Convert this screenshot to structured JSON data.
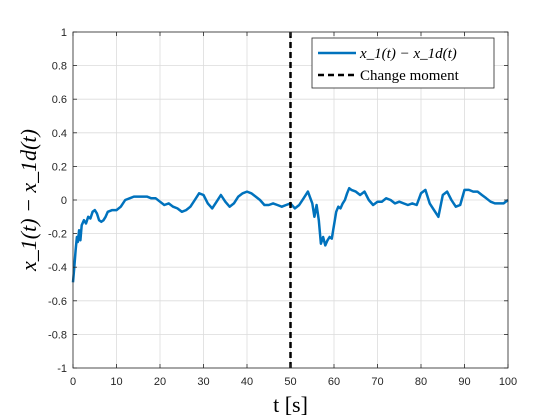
{
  "chart_data": {
    "type": "line",
    "xlabel": "t [s]",
    "ylabel": "x_1(t) − x_1d(t)",
    "xlim": [
      0,
      100
    ],
    "ylim": [
      -1,
      1
    ],
    "xticks": [
      0,
      10,
      20,
      30,
      40,
      50,
      60,
      70,
      80,
      90,
      100
    ],
    "yticks": [
      -1,
      -0.8,
      -0.6,
      -0.4,
      -0.2,
      0,
      0.2,
      0.4,
      0.6,
      0.8,
      1
    ],
    "xtick_labels": [
      "0",
      "10",
      "20",
      "30",
      "40",
      "50",
      "60",
      "70",
      "80",
      "90",
      "100"
    ],
    "ytick_labels": [
      "-1",
      "-0.8",
      "-0.6",
      "-0.4",
      "-0.2",
      "0",
      "0.2",
      "0.4",
      "0.6",
      "0.8",
      "1"
    ],
    "grid": true,
    "legend_position": "top-right",
    "series": [
      {
        "name": "x_1(t) − x_1d(t)",
        "color": "#0072BD",
        "style": "solid",
        "x": [
          0,
          0.3,
          0.6,
          0.9,
          1.1,
          1.4,
          1.7,
          2.0,
          2.5,
          3.0,
          3.5,
          4.0,
          4.5,
          5.0,
          5.5,
          6.0,
          6.5,
          7.0,
          7.5,
          8.0,
          9.0,
          10.0,
          11.0,
          12.0,
          13.0,
          14.0,
          15.0,
          16.0,
          17.0,
          18.0,
          19.0,
          20.0,
          21.0,
          22.0,
          23.0,
          24.0,
          25.0,
          26.0,
          27.0,
          28.0,
          29.0,
          30.0,
          31.0,
          32.0,
          33.0,
          34.0,
          35.0,
          36.0,
          37.0,
          38.0,
          39.0,
          40.0,
          41.0,
          42.0,
          43.0,
          44.0,
          45.0,
          46.0,
          47.0,
          48.0,
          49.0,
          50.0,
          51.0,
          52.0,
          53.0,
          54.0,
          55.0,
          55.5,
          56.0,
          56.5,
          57.0,
          57.5,
          58.0,
          58.5,
          59.0,
          59.5,
          60.0,
          60.5,
          61.0,
          61.5,
          62.0,
          62.5,
          63.0,
          63.5,
          64.0,
          65.0,
          66.0,
          67.0,
          68.0,
          69.0,
          70.0,
          71.0,
          72.0,
          73.0,
          74.0,
          75.0,
          76.0,
          77.0,
          78.0,
          79.0,
          80.0,
          81.0,
          82.0,
          83.0,
          84.0,
          85.0,
          86.0,
          87.0,
          88.0,
          89.0,
          90.0,
          91.0,
          92.0,
          93.0,
          94.0,
          95.0,
          96.0,
          97.0,
          98.0,
          99.0,
          100.0
        ],
        "y": [
          -0.49,
          -0.4,
          -0.3,
          -0.22,
          -0.25,
          -0.18,
          -0.24,
          -0.15,
          -0.12,
          -0.14,
          -0.1,
          -0.11,
          -0.07,
          -0.06,
          -0.08,
          -0.12,
          -0.13,
          -0.12,
          -0.1,
          -0.07,
          -0.06,
          -0.06,
          -0.04,
          0.0,
          0.01,
          0.02,
          0.02,
          0.02,
          0.02,
          0.01,
          0.01,
          -0.01,
          -0.03,
          -0.02,
          -0.04,
          -0.05,
          -0.07,
          -0.06,
          -0.04,
          0.0,
          0.04,
          0.03,
          -0.02,
          -0.05,
          -0.01,
          0.03,
          -0.01,
          -0.04,
          -0.02,
          0.02,
          0.04,
          0.05,
          0.04,
          0.02,
          0.0,
          -0.03,
          -0.03,
          -0.02,
          -0.03,
          -0.04,
          -0.03,
          -0.02,
          -0.05,
          -0.03,
          0.01,
          0.05,
          -0.02,
          -0.1,
          -0.03,
          -0.12,
          -0.26,
          -0.22,
          -0.27,
          -0.24,
          -0.22,
          -0.23,
          -0.15,
          -0.07,
          -0.04,
          -0.05,
          -0.02,
          0.0,
          0.04,
          0.07,
          0.06,
          0.05,
          0.03,
          0.05,
          0.0,
          -0.03,
          -0.01,
          -0.01,
          0.01,
          0.0,
          -0.02,
          -0.01,
          -0.02,
          -0.03,
          -0.02,
          -0.03,
          0.04,
          0.06,
          -0.02,
          -0.06,
          -0.1,
          0.03,
          0.05,
          0.0,
          -0.04,
          -0.03,
          0.06,
          0.06,
          0.05,
          0.05,
          0.03,
          0.01,
          -0.01,
          -0.02,
          -0.02,
          -0.02,
          0.0
        ]
      },
      {
        "name": "Change moment",
        "color": "#000000",
        "style": "dashed",
        "x": [
          50,
          50
        ],
        "y": [
          -1,
          1
        ]
      }
    ]
  }
}
